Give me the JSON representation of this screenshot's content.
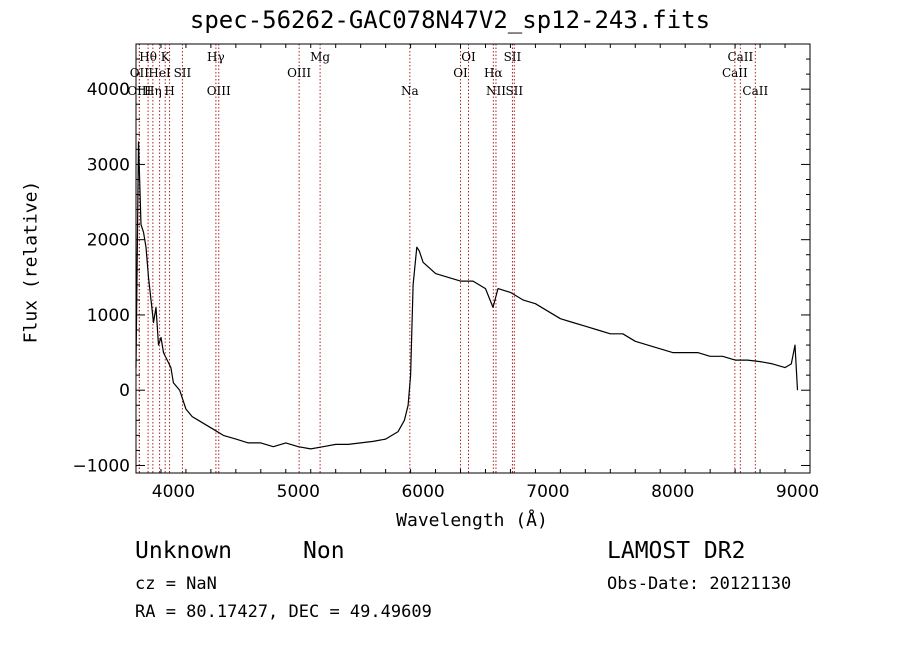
{
  "header": {
    "title": "spec-56262-GAC078N47V2_sp12-243.fits"
  },
  "info": {
    "class": "Unknown",
    "subclass": "Non",
    "survey": "LAMOST DR2",
    "cz": "cz = NaN",
    "obs_date": "Obs-Date: 20121130",
    "radec": "RA =  80.17427, DEC =  49.49609"
  },
  "chart_data": {
    "type": "line",
    "title": "spec-56262-GAC078N47V2_sp12-243.fits",
    "xlabel": "Wavelength (Å)",
    "ylabel": "Flux (relative)",
    "xlim": [
      3700,
      9100
    ],
    "ylim": [
      -1100,
      4600
    ],
    "x_ticks": [
      4000,
      5000,
      6000,
      7000,
      8000,
      9000
    ],
    "y_ticks": [
      -1000,
      0,
      1000,
      2000,
      3000,
      4000
    ],
    "grid": false,
    "line_color": "#000000",
    "marker_color": "#b22222",
    "series": [
      {
        "x": [
          3700,
          3720,
          3740,
          3760,
          3780,
          3800,
          3820,
          3840,
          3860,
          3880,
          3900,
          3920,
          3950,
          3980,
          4000,
          4050,
          4100,
          4150,
          4200,
          4300,
          4400,
          4500,
          4600,
          4700,
          4800,
          4900,
          5000,
          5100,
          5200,
          5300,
          5400,
          5500,
          5600,
          5700,
          5800,
          5850,
          5880,
          5900,
          5920,
          5950,
          5970,
          6000,
          6100,
          6200,
          6300,
          6400,
          6500,
          6560,
          6600,
          6700,
          6800,
          6900,
          7000,
          7100,
          7200,
          7300,
          7400,
          7500,
          7600,
          7700,
          7800,
          7900,
          8000,
          8100,
          8200,
          8300,
          8400,
          8500,
          8600,
          8700,
          8800,
          8900,
          8950,
          8980,
          9000
        ],
        "y": [
          300,
          3300,
          2200,
          2100,
          1900,
          1500,
          1200,
          900,
          1100,
          600,
          700,
          500,
          400,
          300,
          100,
          0,
          -250,
          -350,
          -400,
          -500,
          -600,
          -650,
          -700,
          -700,
          -750,
          -700,
          -750,
          -780,
          -750,
          -720,
          -720,
          -700,
          -680,
          -650,
          -550,
          -400,
          -200,
          200,
          1400,
          1900,
          1850,
          1700,
          1550,
          1500,
          1450,
          1450,
          1350,
          1100,
          1350,
          1300,
          1200,
          1150,
          1050,
          950,
          900,
          850,
          800,
          750,
          750,
          650,
          600,
          550,
          500,
          500,
          500,
          450,
          450,
          400,
          400,
          380,
          350,
          300,
          350,
          600,
          0
        ]
      }
    ],
    "lines": [
      {
        "label": "Hθ",
        "x": 3797,
        "row": 1
      },
      {
        "label": "OII",
        "x": 3727,
        "row": 2
      },
      {
        "label": "OIII",
        "x": 3727,
        "row": 3
      },
      {
        "label": "Hη",
        "x": 3835,
        "row": 3
      },
      {
        "label": "K",
        "x": 3934,
        "row": 1
      },
      {
        "label": "HeI",
        "x": 3889,
        "row": 2
      },
      {
        "label": "SII",
        "x": 4072,
        "row": 2
      },
      {
        "label": "H",
        "x": 3969,
        "row": 3
      },
      {
        "label": "Hγ",
        "x": 4340,
        "row": 1
      },
      {
        "label": "OIII",
        "x": 4363,
        "row": 3
      },
      {
        "label": "Mg",
        "x": 5175,
        "row": 1
      },
      {
        "label": "OIII",
        "x": 5007,
        "row": 2
      },
      {
        "label": "Na",
        "x": 5894,
        "row": 3
      },
      {
        "label": "OI",
        "x": 6364,
        "row": 1
      },
      {
        "label": "OI",
        "x": 6300,
        "row": 2
      },
      {
        "label": "Hα",
        "x": 6563,
        "row": 2
      },
      {
        "label": "NII",
        "x": 6584,
        "row": 3
      },
      {
        "label": "SII",
        "x": 6716,
        "row": 1
      },
      {
        "label": "SII",
        "x": 6731,
        "row": 3
      },
      {
        "label": "CaII",
        "x": 8542,
        "row": 1
      },
      {
        "label": "CaII",
        "x": 8498,
        "row": 2
      },
      {
        "label": "CaII",
        "x": 8662,
        "row": 3
      }
    ]
  }
}
